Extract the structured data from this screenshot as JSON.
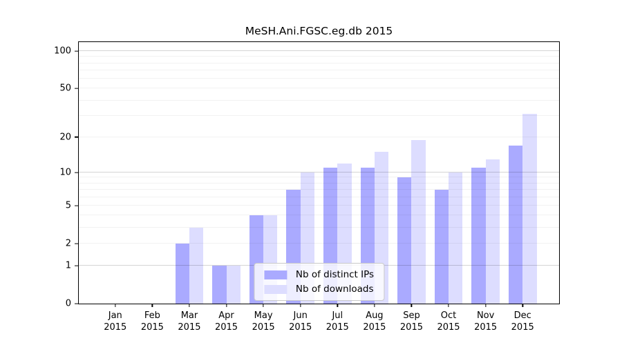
{
  "chart_data": {
    "type": "bar",
    "title": "MeSH.Ani.FGSC.eg.db 2015",
    "year": "2015",
    "categories": [
      "Jan",
      "Feb",
      "Mar",
      "Apr",
      "May",
      "Jun",
      "Jul",
      "Aug",
      "Sep",
      "Oct",
      "Nov",
      "Dec"
    ],
    "series": [
      {
        "name": "Nb of distinct IPs",
        "color": "#aaaaff",
        "values": [
          0,
          0,
          2,
          1,
          4,
          7,
          11,
          11,
          9,
          7,
          11,
          17
        ]
      },
      {
        "name": "Nb of downloads",
        "color": "#ddddff",
        "values": [
          0,
          0,
          3,
          1,
          4,
          10,
          12,
          15,
          19,
          10,
          13,
          31
        ]
      }
    ],
    "y_axis": {
      "scale": "log10(1+x)",
      "ticks": [
        0,
        1,
        2,
        5,
        10,
        20,
        50,
        100
      ],
      "major_gridlines": [
        1,
        10,
        100
      ],
      "minor_gridlines": [
        2,
        3,
        4,
        5,
        6,
        7,
        8,
        9,
        20,
        30,
        40,
        50,
        60,
        70,
        80,
        90
      ],
      "ylim": [
        0,
        118
      ]
    },
    "legend_position": "bottom-center",
    "grid": true
  }
}
